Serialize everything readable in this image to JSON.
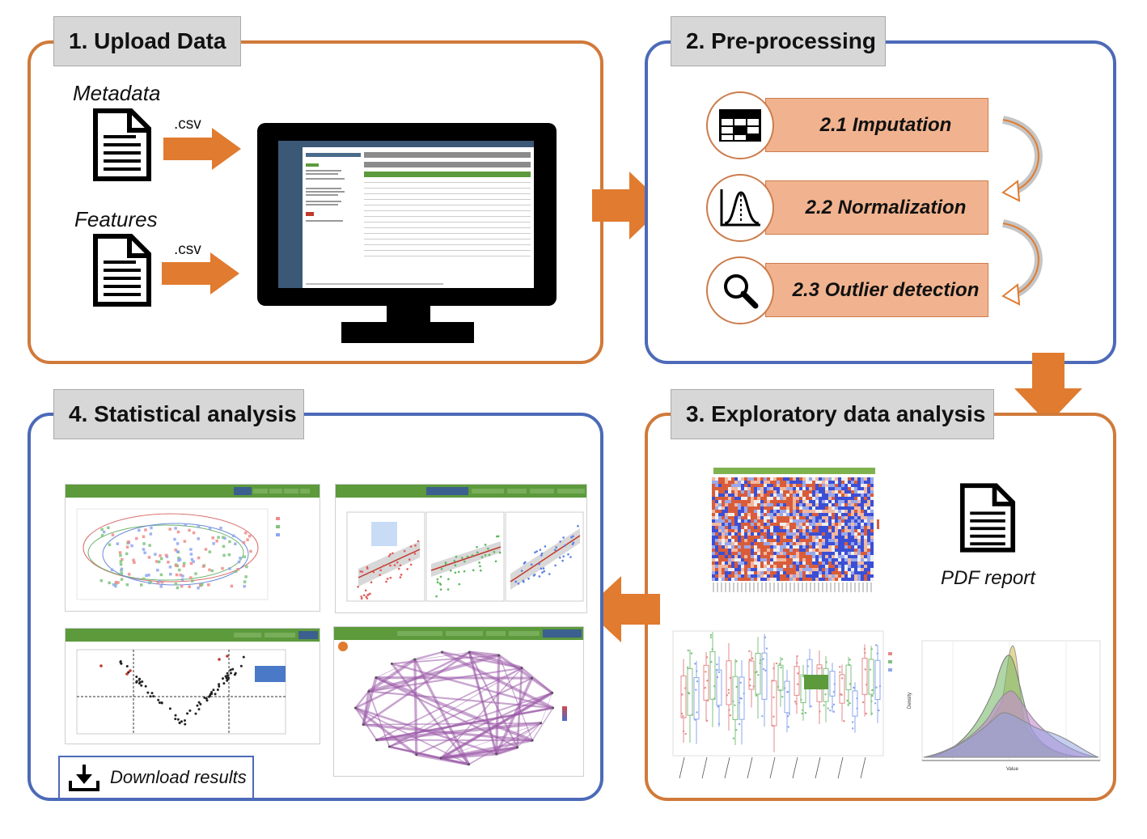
{
  "panels": {
    "upload": {
      "title": "1. Upload Data",
      "metadata_label": "Metadata",
      "features_label": "Features",
      "metadata_ext": ".csv",
      "features_ext": ".csv",
      "icons": [
        "document-icon",
        "monitor-icon"
      ]
    },
    "preprocessing": {
      "title": "2. Pre-processing",
      "steps": [
        {
          "label": "2.1 Imputation",
          "icon": "table-icon"
        },
        {
          "label": "2.2 Normalization",
          "icon": "distribution-icon"
        },
        {
          "label": "2.3 Outlier detection",
          "icon": "magnifier-icon"
        }
      ]
    },
    "exploratory": {
      "title": "3. Exploratory data analysis",
      "report_label": "PDF report",
      "icons": [
        "heatmap-icon",
        "document-icon",
        "boxplot-icon",
        "density-icon"
      ]
    },
    "statistical": {
      "title": "4. Statistical analysis",
      "download_label": "Download results",
      "icons": [
        "pca-icon",
        "correlation-icon",
        "volcano-icon",
        "network-icon",
        "download-icon"
      ]
    }
  },
  "colors": {
    "orange": "#d07a3a",
    "blue": "#4c6ab8",
    "arrow": "#e07b2f",
    "step_fill": "#f1b38f",
    "title_bg": "#d7d7d7",
    "app_green": "#5c9a3c"
  }
}
